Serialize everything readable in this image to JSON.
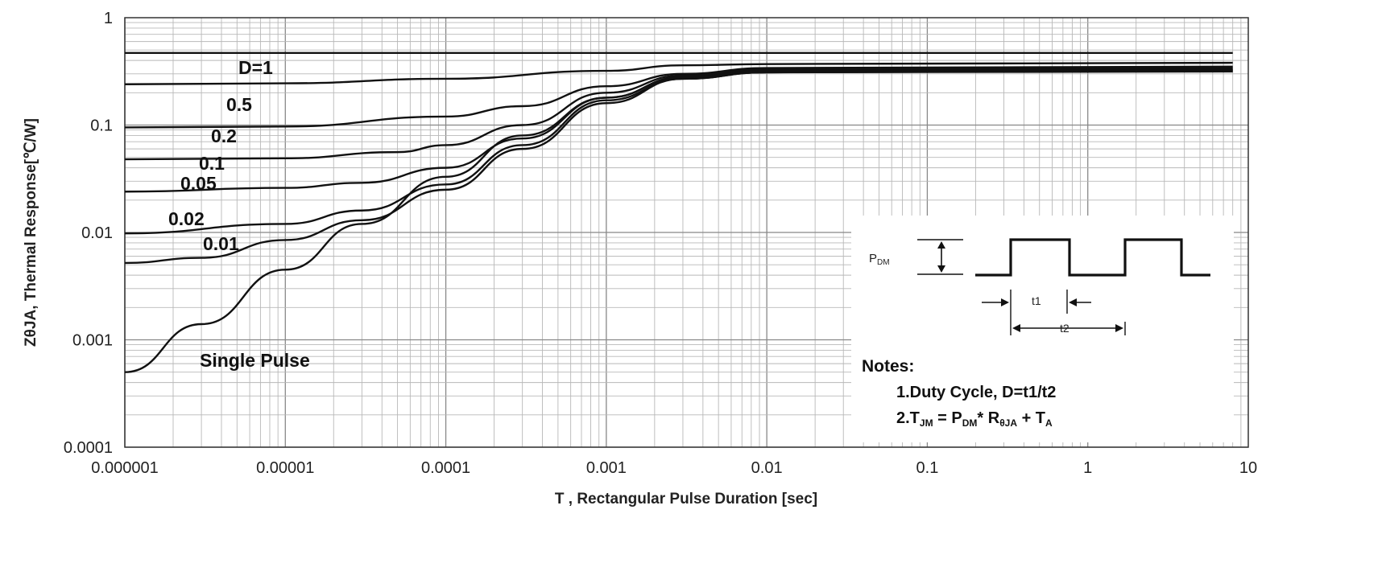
{
  "chart_data": {
    "type": "line",
    "x_scale": "log",
    "y_scale": "log",
    "xlim": [
      1e-06,
      10
    ],
    "ylim": [
      0.0001,
      1
    ],
    "grid": true,
    "xlabel": "T , Rectangular Pulse Duration [sec]",
    "ylabel": "ZθJA, Thermal Response[℃/W]",
    "x_ticks": [
      "0.000001",
      "0.00001",
      "0.0001",
      "0.001",
      "0.01",
      "0.1",
      "1",
      "10"
    ],
    "y_ticks": [
      "0.0001",
      "0.001",
      "0.01",
      "0.1",
      "1"
    ],
    "series": [
      {
        "name": "D=1",
        "points": [
          [
            1e-06,
            0.47
          ],
          [
            8,
            0.47
          ]
        ]
      },
      {
        "name": "0.5",
        "points": [
          [
            1e-06,
            0.24
          ],
          [
            1e-05,
            0.245
          ],
          [
            0.0001,
            0.27
          ],
          [
            0.001,
            0.32
          ],
          [
            0.003,
            0.36
          ],
          [
            0.01,
            0.37
          ],
          [
            8,
            0.38
          ]
        ]
      },
      {
        "name": "0.2",
        "points": [
          [
            1e-06,
            0.095
          ],
          [
            1e-05,
            0.097
          ],
          [
            0.0001,
            0.12
          ],
          [
            0.0003,
            0.15
          ],
          [
            0.001,
            0.23
          ],
          [
            0.003,
            0.3
          ],
          [
            0.01,
            0.34
          ],
          [
            8,
            0.35
          ]
        ]
      },
      {
        "name": "0.1",
        "points": [
          [
            1e-06,
            0.048
          ],
          [
            1e-05,
            0.049
          ],
          [
            5e-05,
            0.056
          ],
          [
            0.0001,
            0.065
          ],
          [
            0.0003,
            0.1
          ],
          [
            0.001,
            0.2
          ],
          [
            0.003,
            0.29
          ],
          [
            0.01,
            0.33
          ],
          [
            8,
            0.34
          ]
        ]
      },
      {
        "name": "0.05",
        "points": [
          [
            1e-06,
            0.024
          ],
          [
            1e-05,
            0.026
          ],
          [
            3e-05,
            0.029
          ],
          [
            0.0001,
            0.04
          ],
          [
            0.0003,
            0.075
          ],
          [
            0.001,
            0.18
          ],
          [
            0.003,
            0.28
          ],
          [
            0.01,
            0.32
          ],
          [
            8,
            0.33
          ]
        ]
      },
      {
        "name": "0.02",
        "points": [
          [
            1e-06,
            0.0098
          ],
          [
            1e-05,
            0.012
          ],
          [
            3e-05,
            0.016
          ],
          [
            0.0001,
            0.028
          ],
          [
            0.0003,
            0.065
          ],
          [
            0.001,
            0.17
          ],
          [
            0.003,
            0.27
          ],
          [
            0.01,
            0.31
          ],
          [
            8,
            0.325
          ]
        ]
      },
      {
        "name": "0.01",
        "points": [
          [
            1e-06,
            0.0052
          ],
          [
            3e-06,
            0.0058
          ],
          [
            1e-05,
            0.0085
          ],
          [
            3e-05,
            0.013
          ],
          [
            0.0001,
            0.025
          ],
          [
            0.0003,
            0.06
          ],
          [
            0.001,
            0.16
          ],
          [
            0.003,
            0.27
          ],
          [
            0.01,
            0.31
          ],
          [
            8,
            0.32
          ]
        ]
      },
      {
        "name": "Single Pulse",
        "points": [
          [
            1e-06,
            0.0005
          ],
          [
            3e-06,
            0.0014
          ],
          [
            1e-05,
            0.0045
          ],
          [
            3e-05,
            0.012
          ],
          [
            0.0001,
            0.033
          ],
          [
            0.0003,
            0.08
          ],
          [
            0.001,
            0.18
          ],
          [
            0.003,
            0.28
          ],
          [
            0.01,
            0.31
          ],
          [
            8,
            0.315
          ]
        ]
      }
    ]
  },
  "inset": {
    "pdm_label": "P",
    "pdm_sub": "DM",
    "t1_label": "t1",
    "t2_label": "t2",
    "notes_title": "Notes:",
    "note1": "1.Duty  Cycle, D=t1/t2",
    "note2_prefix": "2.T",
    "note2_tjm_sub": "JM",
    "note2_eq": " = P",
    "note2_pdm_sub": "DM",
    "note2_times": "* R",
    "note2_r_sub": "θJA",
    "note2_plus": " + T",
    "note2_ta_sub": "A"
  }
}
